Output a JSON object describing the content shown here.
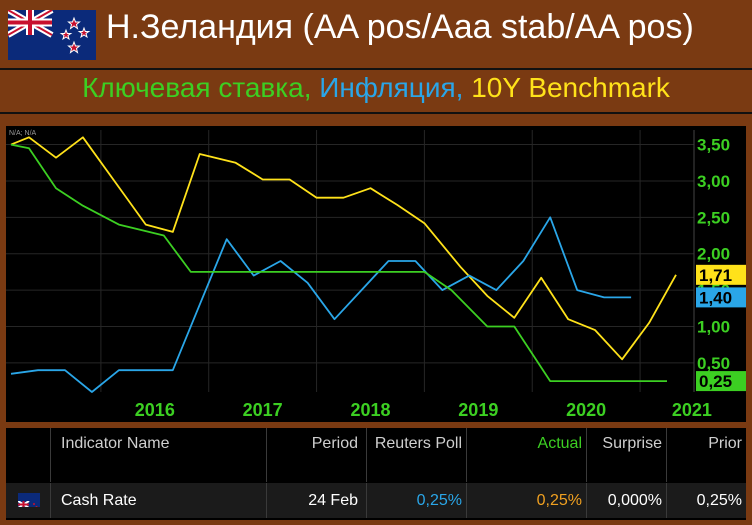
{
  "header": {
    "title": "Н.Зеландия (AA pos/Aaa stab/AA pos)",
    "subtitle_parts": [
      "Ключевая ставка, ",
      "Инфляция, ",
      "10Y Benchmark"
    ]
  },
  "chart_data": {
    "type": "line",
    "corner_note": "N/A; N/A",
    "x_ticks": [
      "2016",
      "2017",
      "2018",
      "2019",
      "2020",
      "2021"
    ],
    "y_ticks": [
      "3,50",
      "3,00",
      "2,50",
      "2,00",
      "1,50",
      "1,00",
      "0,50"
    ],
    "ylim": [
      0.1,
      3.7
    ],
    "grid": true,
    "series": [
      {
        "color": "#ffe21a",
        "last_label": "1,71",
        "points": [
          [
            "2015-03",
            3.5
          ],
          [
            "2015-05",
            3.6
          ],
          [
            "2015-08",
            3.32
          ],
          [
            "2015-11",
            3.6
          ],
          [
            "2016-06",
            2.4
          ],
          [
            "2016-09",
            2.3
          ],
          [
            "2016-12",
            3.37
          ],
          [
            "2017-04",
            3.25
          ],
          [
            "2017-07",
            3.02
          ],
          [
            "2017-10",
            3.02
          ],
          [
            "2018-01",
            2.77
          ],
          [
            "2018-04",
            2.77
          ],
          [
            "2018-07",
            2.9
          ],
          [
            "2018-10",
            2.67
          ],
          [
            "2019-01",
            2.42
          ],
          [
            "2019-05",
            1.82
          ],
          [
            "2019-08",
            1.42
          ],
          [
            "2019-11",
            1.12
          ],
          [
            "2020-02",
            1.67
          ],
          [
            "2020-05",
            1.1
          ],
          [
            "2020-08",
            0.95
          ],
          [
            "2020-11",
            0.55
          ],
          [
            "2021-02",
            1.05
          ],
          [
            "2021-05",
            1.71
          ]
        ]
      },
      {
        "color": "#2aa6e8",
        "last_label": "1,40",
        "points": [
          [
            "2015-03",
            0.35
          ],
          [
            "2015-06",
            0.4
          ],
          [
            "2015-09",
            0.4
          ],
          [
            "2015-12",
            0.1
          ],
          [
            "2016-03",
            0.4
          ],
          [
            "2016-06",
            0.4
          ],
          [
            "2016-09",
            0.4
          ],
          [
            "2016-12",
            1.3
          ],
          [
            "2017-03",
            2.2
          ],
          [
            "2017-06",
            1.7
          ],
          [
            "2017-09",
            1.9
          ],
          [
            "2017-12",
            1.6
          ],
          [
            "2018-03",
            1.1
          ],
          [
            "2018-06",
            1.5
          ],
          [
            "2018-09",
            1.9
          ],
          [
            "2018-12",
            1.9
          ],
          [
            "2019-03",
            1.5
          ],
          [
            "2019-06",
            1.7
          ],
          [
            "2019-09",
            1.5
          ],
          [
            "2019-12",
            1.9
          ],
          [
            "2020-03",
            2.5
          ],
          [
            "2020-06",
            1.5
          ],
          [
            "2020-09",
            1.4
          ],
          [
            "2020-12",
            1.4
          ]
        ]
      },
      {
        "color": "#3ccf22",
        "last_label": "0,25",
        "points": [
          [
            "2015-03",
            3.5
          ],
          [
            "2015-05",
            3.45
          ],
          [
            "2015-08",
            2.9
          ],
          [
            "2015-11",
            2.66
          ],
          [
            "2016-03",
            2.4
          ],
          [
            "2016-08",
            2.25
          ],
          [
            "2016-11",
            1.75
          ],
          [
            "2017-03",
            1.75
          ],
          [
            "2017-09",
            1.75
          ],
          [
            "2018-05",
            1.75
          ],
          [
            "2019-01",
            1.75
          ],
          [
            "2019-04",
            1.5
          ],
          [
            "2019-08",
            1.0
          ],
          [
            "2019-11",
            1.0
          ],
          [
            "2020-03",
            0.25
          ],
          [
            "2020-12",
            0.25
          ],
          [
            "2021-04",
            0.25
          ]
        ]
      }
    ]
  },
  "table": {
    "headers": [
      "Indicator Name",
      "Period",
      "Reuters Poll",
      "Actual",
      "Surprise",
      "Prior"
    ],
    "row": {
      "name": "Cash Rate",
      "period": "24 Feb",
      "poll": "0,25%",
      "actual": "0,25%",
      "surprise": "0,000%",
      "prior": "0,25%"
    },
    "colors": {
      "poll": "#2aa6e8",
      "actual": "#f0a020",
      "header_actual": "#3ccf22"
    }
  }
}
